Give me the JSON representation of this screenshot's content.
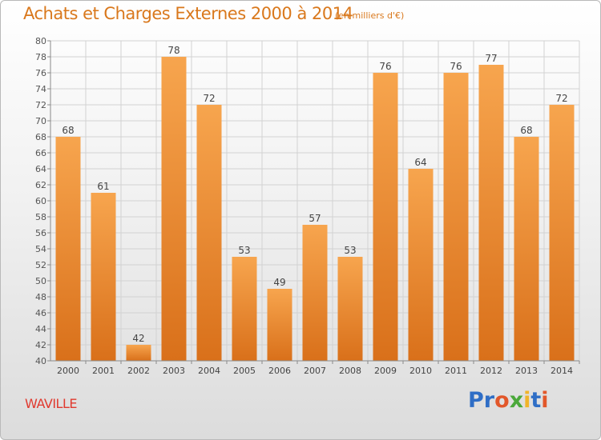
{
  "title": "Achats et Charges Externes 2000 à 2014",
  "unit_note": "(en milliers d'€)",
  "commune": "WAVILLE",
  "logo": {
    "letters": [
      "P",
      "r",
      "o",
      "x",
      "i",
      "t",
      "i"
    ],
    "colors": [
      "#2f6ec6",
      "#2f6ec6",
      "#e2572a",
      "#4aa83a",
      "#f0b42a",
      "#2f6ec6",
      "#e2572a"
    ]
  },
  "colors": {
    "bar_light": "#f7a54e",
    "bar_dark": "#d9701a",
    "grid": "#d2d2d2",
    "axis": "#8a8a8a",
    "title": "#d9781c"
  },
  "chart_data": {
    "type": "bar",
    "categories": [
      "2000",
      "2001",
      "2002",
      "2003",
      "2004",
      "2005",
      "2006",
      "2007",
      "2008",
      "2009",
      "2010",
      "2011",
      "2012",
      "2013",
      "2014"
    ],
    "values": [
      68,
      61,
      42,
      78,
      72,
      53,
      49,
      57,
      53,
      76,
      64,
      76,
      77,
      68,
      72
    ],
    "ylim": [
      40,
      80
    ],
    "yticks": [
      40,
      42,
      44,
      46,
      48,
      50,
      52,
      54,
      56,
      58,
      60,
      62,
      64,
      66,
      68,
      70,
      72,
      74,
      76,
      78,
      80
    ],
    "grid": true,
    "data_labels": true
  }
}
